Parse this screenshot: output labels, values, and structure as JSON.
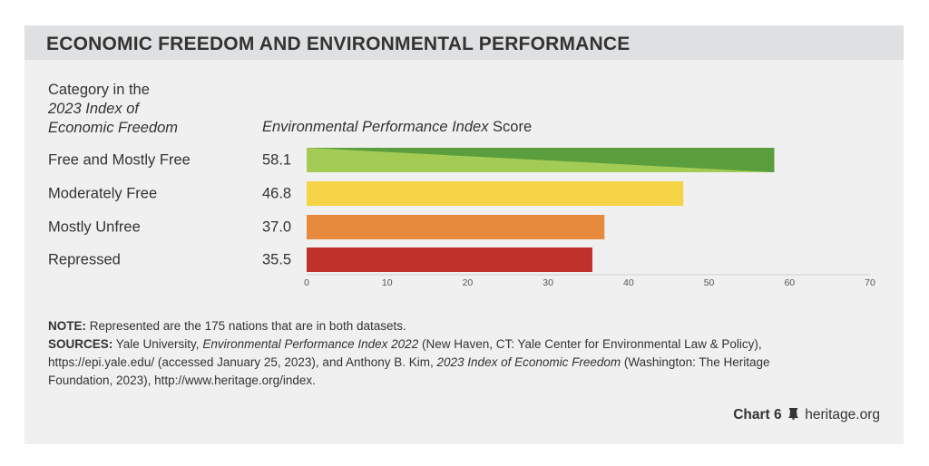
{
  "title": "ECONOMIC FREEDOM AND ENVIRONMENTAL PERFORMANCE",
  "category_header": {
    "line1": "Category in the",
    "line2_italic": "2023 Index of",
    "line3_italic": "Economic Freedom"
  },
  "value_header": {
    "italic": "Environmental Performance Index",
    "plain": " Score"
  },
  "chart_data": {
    "type": "bar",
    "orientation": "horizontal",
    "categories": [
      "Free and Mostly Free",
      "Moderately Free",
      "Mostly Unfree",
      "Repressed"
    ],
    "values": [
      58.1,
      46.8,
      37.0,
      35.5
    ],
    "value_labels": [
      "58.1",
      "46.8",
      "37.0",
      "35.5"
    ],
    "colors": [
      "#5a9e3e",
      "#f5d547",
      "#e88a3d",
      "#c0312b"
    ],
    "gradient_light": "#a4cc55",
    "xlim": [
      0,
      70
    ],
    "xticks": [
      0,
      10,
      20,
      30,
      40,
      50,
      60,
      70
    ],
    "grid": false
  },
  "note": {
    "label": "NOTE:",
    "text": " Represented are the 175 nations that are in both datasets."
  },
  "sources": {
    "label": "SOURCES:",
    "t1": " Yale University, ",
    "i1": "Environmental Performance Index 2022",
    "t2": " (New Haven, CT: Yale Center for Environmental Law & Policy), https://epi.yale.edu/ (accessed January 25, 2023), and Anthony B. Kim, ",
    "i2": "2023 Index of Economic Freedom",
    "t3": " (Washington: The Heritage Foundation, 2023), http://www.heritage.org/index."
  },
  "credit": {
    "chart": "Chart 6",
    "site": "heritage.org"
  }
}
